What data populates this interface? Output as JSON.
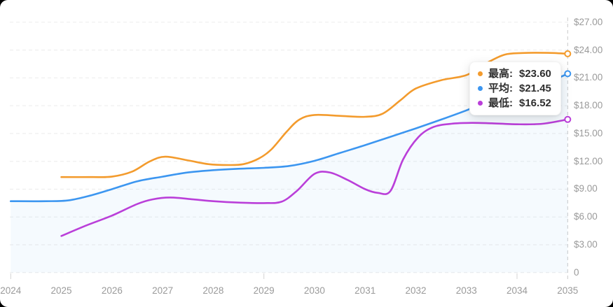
{
  "chart_data": {
    "type": "line",
    "title": "",
    "x_axis": {
      "labels": [
        "2024",
        "2025",
        "2026",
        "2027",
        "2028",
        "2029",
        "2030",
        "2031",
        "2032",
        "2033",
        "2034",
        "2035"
      ],
      "range": [
        2024,
        2035
      ],
      "minor_tick_years": [
        2024,
        2029,
        2034
      ]
    },
    "y_axis": {
      "position": "right",
      "range": [
        0,
        27
      ],
      "ticks": [
        {
          "value": 27,
          "label": "$27.00"
        },
        {
          "value": 24,
          "label": "$24.00"
        },
        {
          "value": 21,
          "label": "$21.00"
        },
        {
          "value": 18,
          "label": "$18.00"
        },
        {
          "value": 15,
          "label": "$15.00"
        },
        {
          "value": 12,
          "label": "$12.00"
        },
        {
          "value": 9,
          "label": "$9.00"
        },
        {
          "value": 6,
          "label": "$6.00"
        },
        {
          "value": 3,
          "label": "$3.00"
        },
        {
          "value": 0,
          "label": "0"
        }
      ]
    },
    "grid": {
      "horizontal": true,
      "vertical": false,
      "style": "dashed"
    },
    "series": [
      {
        "id": "high",
        "name": "最高",
        "color": "#f39b2d",
        "end_value": 23.6,
        "end_label": "$23.60",
        "points": [
          [
            2025.0,
            10.3
          ],
          [
            2025.6,
            10.3
          ],
          [
            2026.0,
            10.35
          ],
          [
            2026.4,
            10.9
          ],
          [
            2026.75,
            12.0
          ],
          [
            2027.05,
            12.5
          ],
          [
            2027.5,
            12.1
          ],
          [
            2027.9,
            11.7
          ],
          [
            2028.3,
            11.6
          ],
          [
            2028.6,
            11.7
          ],
          [
            2028.9,
            12.3
          ],
          [
            2029.15,
            13.3
          ],
          [
            2029.45,
            15.2
          ],
          [
            2029.7,
            16.5
          ],
          [
            2030.0,
            17.0
          ],
          [
            2030.5,
            16.9
          ],
          [
            2031.0,
            16.8
          ],
          [
            2031.35,
            17.15
          ],
          [
            2031.7,
            18.6
          ],
          [
            2032.0,
            19.85
          ],
          [
            2032.5,
            20.75
          ],
          [
            2033.0,
            21.3
          ],
          [
            2033.4,
            22.6
          ],
          [
            2033.75,
            23.5
          ],
          [
            2034.1,
            23.68
          ],
          [
            2034.6,
            23.7
          ],
          [
            2035.0,
            23.6
          ]
        ]
      },
      {
        "id": "average",
        "name": "平均",
        "color": "#3c96f0",
        "end_value": 21.45,
        "end_label": "$21.45",
        "area_fill": "rgba(60,150,240,0.05)",
        "points": [
          [
            2024.0,
            7.7
          ],
          [
            2024.7,
            7.7
          ],
          [
            2025.15,
            7.8
          ],
          [
            2025.6,
            8.35
          ],
          [
            2026.0,
            9.0
          ],
          [
            2026.5,
            9.85
          ],
          [
            2027.0,
            10.35
          ],
          [
            2027.5,
            10.8
          ],
          [
            2028.0,
            11.05
          ],
          [
            2028.5,
            11.2
          ],
          [
            2029.0,
            11.3
          ],
          [
            2029.5,
            11.5
          ],
          [
            2030.0,
            12.05
          ],
          [
            2030.5,
            12.9
          ],
          [
            2031.0,
            13.75
          ],
          [
            2031.5,
            14.65
          ],
          [
            2032.0,
            15.55
          ],
          [
            2032.5,
            16.5
          ],
          [
            2033.0,
            17.5
          ],
          [
            2033.5,
            18.6
          ],
          [
            2034.0,
            19.7
          ],
          [
            2034.5,
            20.7
          ],
          [
            2034.8,
            21.0
          ],
          [
            2035.0,
            21.45
          ]
        ]
      },
      {
        "id": "low",
        "name": "最低",
        "color": "#ba3fd9",
        "end_value": 16.52,
        "end_label": "$16.52",
        "points": [
          [
            2025.0,
            3.95
          ],
          [
            2025.5,
            5.1
          ],
          [
            2026.0,
            6.15
          ],
          [
            2026.5,
            7.4
          ],
          [
            2026.8,
            7.9
          ],
          [
            2027.15,
            8.1
          ],
          [
            2027.6,
            7.9
          ],
          [
            2028.0,
            7.7
          ],
          [
            2028.5,
            7.55
          ],
          [
            2029.0,
            7.5
          ],
          [
            2029.35,
            7.65
          ],
          [
            2029.65,
            8.8
          ],
          [
            2030.0,
            10.65
          ],
          [
            2030.3,
            10.8
          ],
          [
            2030.65,
            10.0
          ],
          [
            2031.0,
            9.0
          ],
          [
            2031.25,
            8.6
          ],
          [
            2031.5,
            8.8
          ],
          [
            2031.75,
            12.2
          ],
          [
            2032.05,
            14.6
          ],
          [
            2032.35,
            15.7
          ],
          [
            2032.7,
            16.05
          ],
          [
            2033.1,
            16.15
          ],
          [
            2033.5,
            16.1
          ],
          [
            2034.0,
            16.0
          ],
          [
            2034.5,
            16.05
          ],
          [
            2035.0,
            16.52
          ]
        ]
      }
    ],
    "tooltip": {
      "items": [
        {
          "label": "最高:",
          "value": "$23.60",
          "color": "#f39b2d"
        },
        {
          "label": "平均:",
          "value": "$21.45",
          "color": "#3c96f0"
        },
        {
          "label": "最低:",
          "value": "$16.52",
          "color": "#ba3fd9"
        }
      ]
    },
    "legend_position": "tooltip-overlay-right"
  }
}
